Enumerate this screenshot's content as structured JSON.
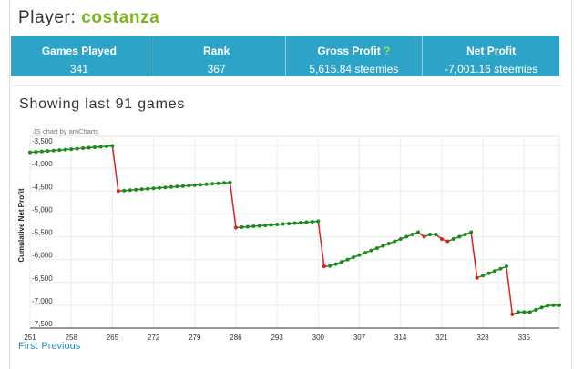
{
  "player": {
    "label": "Player:",
    "name": "costanza"
  },
  "stats": [
    {
      "label": "Games Played",
      "value": "341",
      "help": ""
    },
    {
      "label": "Rank",
      "value": "367",
      "help": ""
    },
    {
      "label": "Gross Profit",
      "value": "5,615.84 steemies",
      "help": "?"
    },
    {
      "label": "Net Profit",
      "value": "-7,001.16 steemies",
      "help": ""
    }
  ],
  "section_title": "Showing last 91 games",
  "pager": {
    "first": "First",
    "previous": "Previous"
  },
  "colors": {
    "accent": "#2ea3c8",
    "player_name": "#7ab51d",
    "win": "#1a8a1a",
    "loss": "#e02020"
  },
  "chart_data": {
    "type": "line",
    "credit": "JS chart by amCharts",
    "xlabel": "",
    "ylabel": "Cumulative Net Profit",
    "xlim": [
      251,
      341
    ],
    "ylim": [
      -7500,
      -3300
    ],
    "xticks": [
      251,
      258,
      265,
      272,
      279,
      286,
      293,
      300,
      307,
      314,
      321,
      328,
      335
    ],
    "yticks": [
      -3500,
      -4000,
      -4500,
      -5000,
      -5500,
      -6000,
      -6500,
      -7000,
      -7500
    ],
    "grid": true,
    "series": [
      {
        "x": [
          251,
          252,
          253,
          254,
          255,
          256,
          257,
          258,
          259,
          260,
          261,
          262,
          263,
          264,
          265,
          266,
          267,
          268,
          269,
          270,
          271,
          272,
          273,
          274,
          275,
          276,
          277,
          278,
          279,
          280,
          281,
          282,
          283,
          284,
          285,
          286,
          287,
          288,
          289,
          290,
          291,
          292,
          293,
          294,
          295,
          296,
          297,
          298,
          299,
          300,
          301,
          302,
          303,
          304,
          305,
          306,
          307,
          308,
          309,
          310,
          311,
          312,
          313,
          314,
          315,
          316,
          317,
          318,
          319,
          320,
          321,
          322,
          323,
          324,
          325,
          326,
          327,
          328,
          329,
          330,
          331,
          332,
          333,
          334,
          335,
          336,
          337,
          338,
          339,
          340,
          341
        ],
        "y": [
          -3650,
          -3640,
          -3630,
          -3620,
          -3610,
          -3600,
          -3590,
          -3580,
          -3570,
          -3560,
          -3550,
          -3540,
          -3530,
          -3520,
          -3510,
          -4500,
          -4490,
          -4480,
          -4470,
          -4460,
          -4450,
          -4440,
          -4430,
          -4420,
          -4410,
          -4400,
          -4390,
          -4380,
          -4370,
          -4360,
          -4350,
          -4340,
          -4330,
          -4320,
          -4310,
          -5300,
          -5290,
          -5280,
          -5270,
          -5260,
          -5250,
          -5240,
          -5230,
          -5220,
          -5210,
          -5200,
          -5190,
          -5180,
          -5170,
          -5160,
          -6150,
          -6140,
          -6100,
          -6050,
          -6000,
          -5950,
          -5900,
          -5850,
          -5800,
          -5750,
          -5700,
          -5650,
          -5600,
          -5550,
          -5500,
          -5450,
          -5400,
          -5500,
          -5450,
          -5450,
          -5550,
          -5600,
          -5550,
          -5500,
          -5450,
          -5400,
          -6400,
          -6350,
          -6300,
          -6250,
          -6200,
          -6150,
          -7200,
          -7150,
          -7150,
          -7150,
          -7100,
          -7050,
          -7010,
          -7001,
          -7001
        ],
        "result": [
          "w",
          "w",
          "w",
          "w",
          "w",
          "w",
          "w",
          "w",
          "w",
          "w",
          "w",
          "w",
          "w",
          "w",
          "w",
          "l",
          "w",
          "w",
          "w",
          "w",
          "w",
          "w",
          "w",
          "w",
          "w",
          "w",
          "w",
          "w",
          "w",
          "w",
          "w",
          "w",
          "w",
          "w",
          "w",
          "l",
          "w",
          "w",
          "w",
          "w",
          "w",
          "w",
          "w",
          "w",
          "w",
          "w",
          "w",
          "w",
          "w",
          "w",
          "l",
          "w",
          "w",
          "w",
          "w",
          "w",
          "w",
          "w",
          "w",
          "w",
          "w",
          "w",
          "w",
          "w",
          "w",
          "w",
          "w",
          "l",
          "w",
          "w",
          "l",
          "l",
          "w",
          "w",
          "w",
          "w",
          "l",
          "w",
          "w",
          "w",
          "w",
          "w",
          "l",
          "w",
          "w",
          "w",
          "w",
          "w",
          "w",
          "w",
          "w"
        ]
      }
    ]
  }
}
